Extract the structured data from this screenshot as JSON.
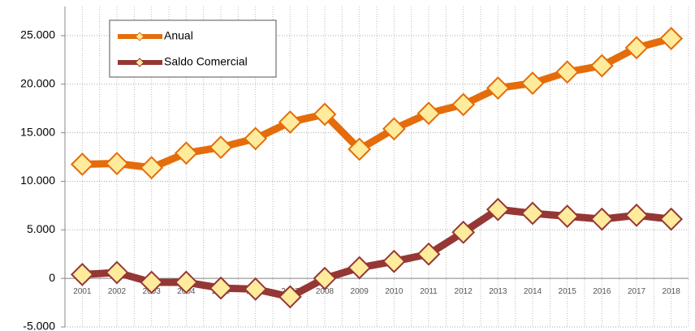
{
  "chart_data": {
    "type": "line",
    "categories": [
      "2001",
      "2002",
      "2003",
      "2004",
      "2005",
      "2006",
      "2007",
      "2008",
      "2009",
      "2010",
      "2011",
      "2012",
      "2013",
      "2014",
      "2015",
      "2016",
      "2017",
      "2018"
    ],
    "series": [
      {
        "name": "Anual",
        "color": "#e46c0a",
        "values": [
          11750,
          11830,
          11400,
          12900,
          13500,
          14400,
          16100,
          16900,
          13300,
          15400,
          17000,
          17900,
          19600,
          20100,
          21250,
          21900,
          23750,
          24700
        ]
      },
      {
        "name": "Saldo Comercial",
        "color": "#953735",
        "values": [
          400,
          600,
          -400,
          -400,
          -1000,
          -1100,
          -1900,
          0,
          1100,
          1750,
          2500,
          4750,
          7100,
          6700,
          6400,
          6100,
          6500,
          6100
        ]
      }
    ],
    "marker_color": "#ffeb9c",
    "ylim": [
      -5000,
      28000
    ],
    "yticks": [
      {
        "value": -5000,
        "label": "-5.000"
      },
      0,
      {
        "value": 5000,
        "label": "5.000"
      },
      {
        "value": 10000,
        "label": "10.000"
      },
      {
        "value": 15000,
        "label": "15.000"
      },
      {
        "value": 20000,
        "label": "20.000"
      },
      {
        "value": 25000,
        "label": "25.000"
      }
    ],
    "grid": true,
    "legend": "upper left"
  }
}
